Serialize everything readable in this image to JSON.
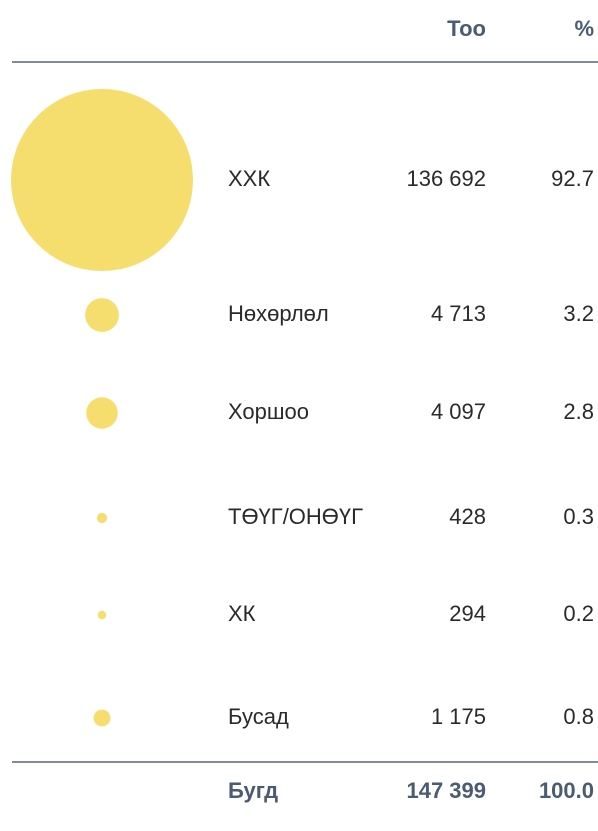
{
  "chart_data": {
    "type": "bubble",
    "headers": {
      "count": "Тоо",
      "percent": "%"
    },
    "categories": [
      "ХХК",
      "Нөхөрлөл",
      "Хоршоо",
      "ТӨҮГ/ОНӨҮГ",
      "ХК",
      "Бусад"
    ],
    "values": [
      136692,
      4713,
      4097,
      428,
      294,
      1175
    ],
    "value_labels": [
      "136 692",
      "4 713",
      "4 097",
      "428",
      "294",
      "1 175"
    ],
    "percents": [
      92.7,
      3.2,
      2.8,
      0.3,
      0.2,
      0.8
    ],
    "color": "#f6de6e",
    "total": {
      "name": "Бугд",
      "value": 147399,
      "value_label": "147 399",
      "percent": 100,
      "percent_label": "100.0"
    }
  }
}
